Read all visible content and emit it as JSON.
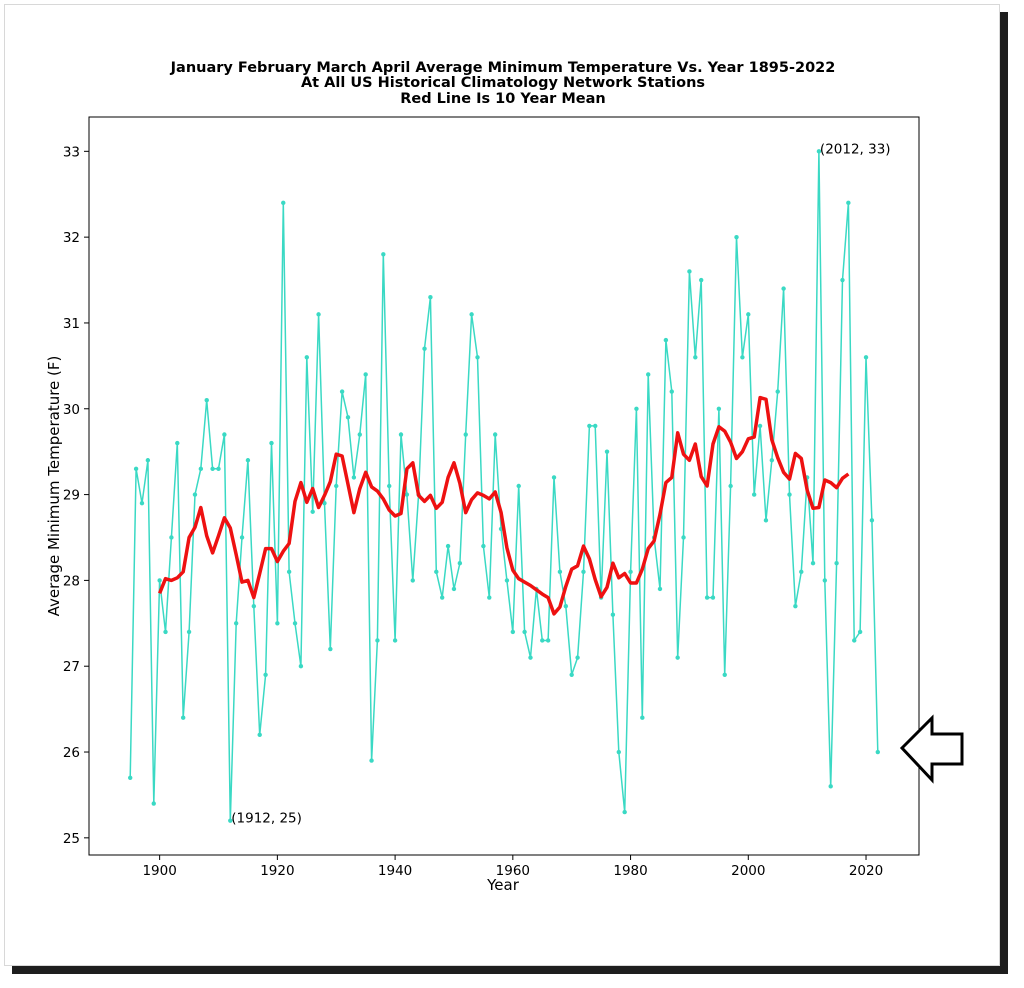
{
  "chart_data": {
    "type": "line",
    "title": [
      "January February March April Average Minimum Temperature Vs. Year 1895-2022",
      "At All US Historical Climatology Network Stations",
      "Red Line Is 10 Year Mean"
    ],
    "xlabel": "Year",
    "ylabel": "Average Minimum Temperature (F)",
    "xlim": [
      1888,
      2029
    ],
    "ylim": [
      24.8,
      33.4
    ],
    "xticks": [
      "1900",
      "1920",
      "1940",
      "1960",
      "1980",
      "2000",
      "2020"
    ],
    "yticks": [
      "25",
      "26",
      "27",
      "28",
      "29",
      "30",
      "31",
      "32",
      "33"
    ],
    "grid": false,
    "series": [
      {
        "color": "#3ad9c4",
        "marker": "dot",
        "x_start": 1895,
        "values": [
          25.7,
          29.3,
          28.9,
          29.4,
          25.4,
          28.0,
          27.4,
          28.5,
          29.6,
          26.4,
          27.4,
          29.0,
          29.3,
          30.1,
          29.3,
          29.3,
          29.7,
          25.2,
          27.5,
          28.5,
          29.4,
          27.7,
          26.2,
          26.9,
          29.6,
          27.5,
          32.4,
          28.1,
          27.5,
          27.0,
          30.6,
          28.8,
          31.1,
          28.9,
          27.2,
          29.1,
          30.2,
          29.9,
          29.2,
          29.7,
          30.4,
          25.9,
          27.3,
          31.8,
          29.1,
          27.3,
          29.7,
          29.0,
          28.0,
          29.0,
          30.7,
          31.3,
          28.1,
          27.8,
          28.4,
          27.9,
          28.2,
          29.7,
          31.1,
          30.6,
          28.4,
          27.8,
          29.7,
          28.6,
          28.0,
          27.4,
          29.1,
          27.4,
          27.1,
          27.9,
          27.3,
          27.3,
          29.2,
          28.1,
          27.7,
          26.9,
          27.1,
          28.1,
          29.8,
          29.8,
          27.8,
          29.5,
          27.6,
          26.0,
          25.3,
          28.1,
          30.0,
          26.4,
          30.4,
          28.5,
          27.9,
          30.8,
          30.2,
          27.1,
          28.5,
          31.6,
          30.6,
          31.5,
          27.8,
          27.8,
          30.0,
          26.9,
          29.1,
          32.0,
          30.6,
          31.1,
          29.0,
          29.8,
          28.7,
          29.4,
          30.2,
          31.4,
          29.0,
          27.7,
          28.1,
          29.2,
          28.2,
          33.0,
          28.0,
          25.6,
          28.2,
          31.5,
          32.4,
          27.3,
          27.4,
          30.6,
          28.7,
          26.0
        ]
      },
      {
        "color": "#ee1111",
        "x_start": 1900,
        "values": [
          27.85,
          28.02,
          28.0,
          28.03,
          28.1,
          28.5,
          28.62,
          28.85,
          28.52,
          28.32,
          28.52,
          28.73,
          28.61,
          28.3,
          27.98,
          28.0,
          27.8,
          28.08,
          28.37,
          28.37,
          28.22,
          28.34,
          28.43,
          28.92,
          29.14,
          28.91,
          29.07,
          28.85,
          28.99,
          29.15,
          29.47,
          29.45,
          29.12,
          28.79,
          29.07,
          29.26,
          29.09,
          29.04,
          28.95,
          28.82,
          28.75,
          28.78,
          29.3,
          29.37,
          28.99,
          28.92,
          28.99,
          28.84,
          28.91,
          29.2,
          29.37,
          29.13,
          28.79,
          28.94,
          29.02,
          28.99,
          28.95,
          29.03,
          28.79,
          28.38,
          28.12,
          28.02,
          27.98,
          27.94,
          27.89,
          27.84,
          27.8,
          27.61,
          27.69,
          27.93,
          28.13,
          28.17,
          28.4,
          28.25,
          28.01,
          27.81,
          27.92,
          28.2,
          28.03,
          28.08,
          27.97,
          27.97,
          28.13,
          28.37,
          28.46,
          28.77,
          29.14,
          29.2,
          29.72,
          29.47,
          29.4,
          29.59,
          29.21,
          29.1,
          29.59,
          29.79,
          29.74,
          29.61,
          29.42,
          29.5,
          29.65,
          29.67,
          30.13,
          30.11,
          29.64,
          29.43,
          29.26,
          29.18,
          29.48,
          29.42,
          29.05,
          28.84,
          28.85,
          29.17,
          29.14,
          29.08,
          29.19,
          29.24
        ]
      }
    ],
    "annotations": [
      {
        "text": "(1912, 25)",
        "x": 1912,
        "y": 25.2
      },
      {
        "text": "(2012, 33)",
        "x": 2012,
        "y": 33.0
      }
    ]
  },
  "arrow_icon": "left-arrow-icon"
}
